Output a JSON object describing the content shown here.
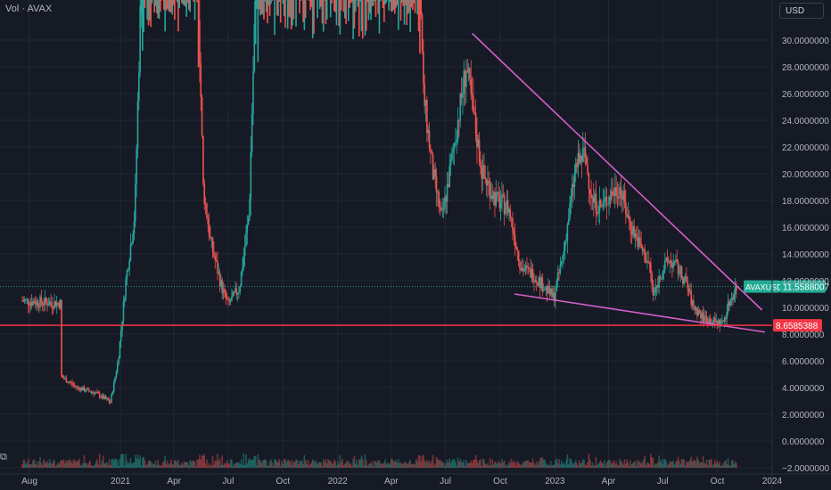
{
  "legend": {
    "text": "Vol · AVAX"
  },
  "currency": {
    "label": "USD"
  },
  "colors": {
    "background": "#161a25",
    "grid": "#232733",
    "up": "#26a69a",
    "down": "#ef5350",
    "trendline": "#d25fc8",
    "support": "#f23645",
    "last_price": "#22ab94",
    "axis_text": "#b2b5be"
  },
  "chart_data": {
    "type": "candlestick",
    "title": "",
    "symbol": "AVAXUSD",
    "y_axis": {
      "ticks": [
        "30.0000000",
        "28.0000000",
        "26.0000000",
        "24.0000000",
        "22.0000000",
        "20.0000000",
        "18.0000000",
        "16.0000000",
        "14.0000000",
        "12.0000000",
        "10.0000000",
        "8.0000000",
        "6.0000000",
        "4.0000000",
        "2.0000000",
        "0.0000000",
        "−2.0000000"
      ],
      "tick_values": [
        30,
        28,
        26,
        24,
        22,
        20,
        18,
        16,
        14,
        12,
        10,
        8,
        6,
        4,
        2,
        0,
        -2
      ]
    },
    "x_axis": {
      "ticks": [
        "Aug",
        "2021",
        "Apr",
        "Jul",
        "Oct",
        "2022",
        "Apr",
        "Jul",
        "Oct",
        "2023",
        "Apr",
        "Jul",
        "Oct",
        "2024"
      ],
      "tick_dates": [
        "2020-08-01",
        "2021-01-01",
        "2021-04-01",
        "2021-07-01",
        "2021-10-01",
        "2022-01-01",
        "2022-04-01",
        "2022-07-01",
        "2022-10-01",
        "2023-01-01",
        "2023-04-01",
        "2023-07-01",
        "2023-10-01",
        "2024-01-01"
      ]
    },
    "price_path": [
      [
        "2020-07-20",
        10.5
      ],
      [
        "2020-08-20",
        10.4
      ],
      [
        "2020-09-23",
        10.3
      ],
      [
        "2020-09-24",
        4.8
      ],
      [
        "2020-10-20",
        4.0
      ],
      [
        "2020-11-20",
        3.6
      ],
      [
        "2020-12-15",
        2.9
      ],
      [
        "2020-12-28",
        6.0
      ],
      [
        "2021-01-10",
        12.0
      ],
      [
        "2021-01-25",
        17.0
      ],
      [
        "2021-02-08",
        40.0
      ],
      [
        "2021-03-10",
        40.0
      ],
      [
        "2021-04-10",
        35.0
      ],
      [
        "2021-05-10",
        36.0
      ],
      [
        "2021-05-20",
        19.0
      ],
      [
        "2021-06-01",
        15.0
      ],
      [
        "2021-06-20",
        11.5
      ],
      [
        "2021-07-01",
        10.2
      ],
      [
        "2021-07-20",
        11.5
      ],
      [
        "2021-08-05",
        17.0
      ],
      [
        "2021-08-20",
        40.0
      ],
      [
        "2022-05-15",
        40.0
      ],
      [
        "2022-05-25",
        26.0
      ],
      [
        "2022-06-10",
        20.0
      ],
      [
        "2022-06-25",
        16.5
      ],
      [
        "2022-07-15",
        22.0
      ],
      [
        "2022-08-05",
        28.0
      ],
      [
        "2022-08-15",
        25.0
      ],
      [
        "2022-09-01",
        20.0
      ],
      [
        "2022-09-25",
        18.0
      ],
      [
        "2022-10-15",
        17.5
      ],
      [
        "2022-11-05",
        13.0
      ],
      [
        "2022-11-25",
        12.5
      ],
      [
        "2022-12-15",
        11.5
      ],
      [
        "2022-12-30",
        10.7
      ],
      [
        "2023-01-15",
        14.0
      ],
      [
        "2023-02-05",
        20.5
      ],
      [
        "2023-02-20",
        21.5
      ],
      [
        "2023-03-05",
        18.0
      ],
      [
        "2023-03-20",
        17.5
      ],
      [
        "2023-04-05",
        18.5
      ],
      [
        "2023-04-20",
        19.0
      ],
      [
        "2023-05-05",
        16.5
      ],
      [
        "2023-05-25",
        14.5
      ],
      [
        "2023-06-10",
        13.0
      ],
      [
        "2023-06-15",
        10.8
      ],
      [
        "2023-06-30",
        12.8
      ],
      [
        "2023-07-12",
        13.5
      ],
      [
        "2023-07-25",
        13.0
      ],
      [
        "2023-08-10",
        11.8
      ],
      [
        "2023-08-20",
        10.2
      ],
      [
        "2023-09-05",
        9.3
      ],
      [
        "2023-09-25",
        8.9
      ],
      [
        "2023-10-10",
        8.8
      ],
      [
        "2023-10-22",
        10.5
      ],
      [
        "2023-11-02",
        11.56
      ]
    ],
    "annotations": [
      {
        "kind": "trendline",
        "from": [
          "2022-08-15",
          30.5
        ],
        "to": [
          "2023-12-15",
          9.8
        ]
      },
      {
        "kind": "trendline",
        "from": [
          "2022-10-25",
          11.0
        ],
        "to": [
          "2023-12-20",
          8.15
        ]
      },
      {
        "kind": "hline",
        "value": 8.6585,
        "label": "8.6585388"
      }
    ],
    "last_price": {
      "symbol": "AVAXUSD",
      "value": 11.5588007,
      "label": "11.5588007"
    },
    "volume": "shown as bars along bottom axis"
  }
}
